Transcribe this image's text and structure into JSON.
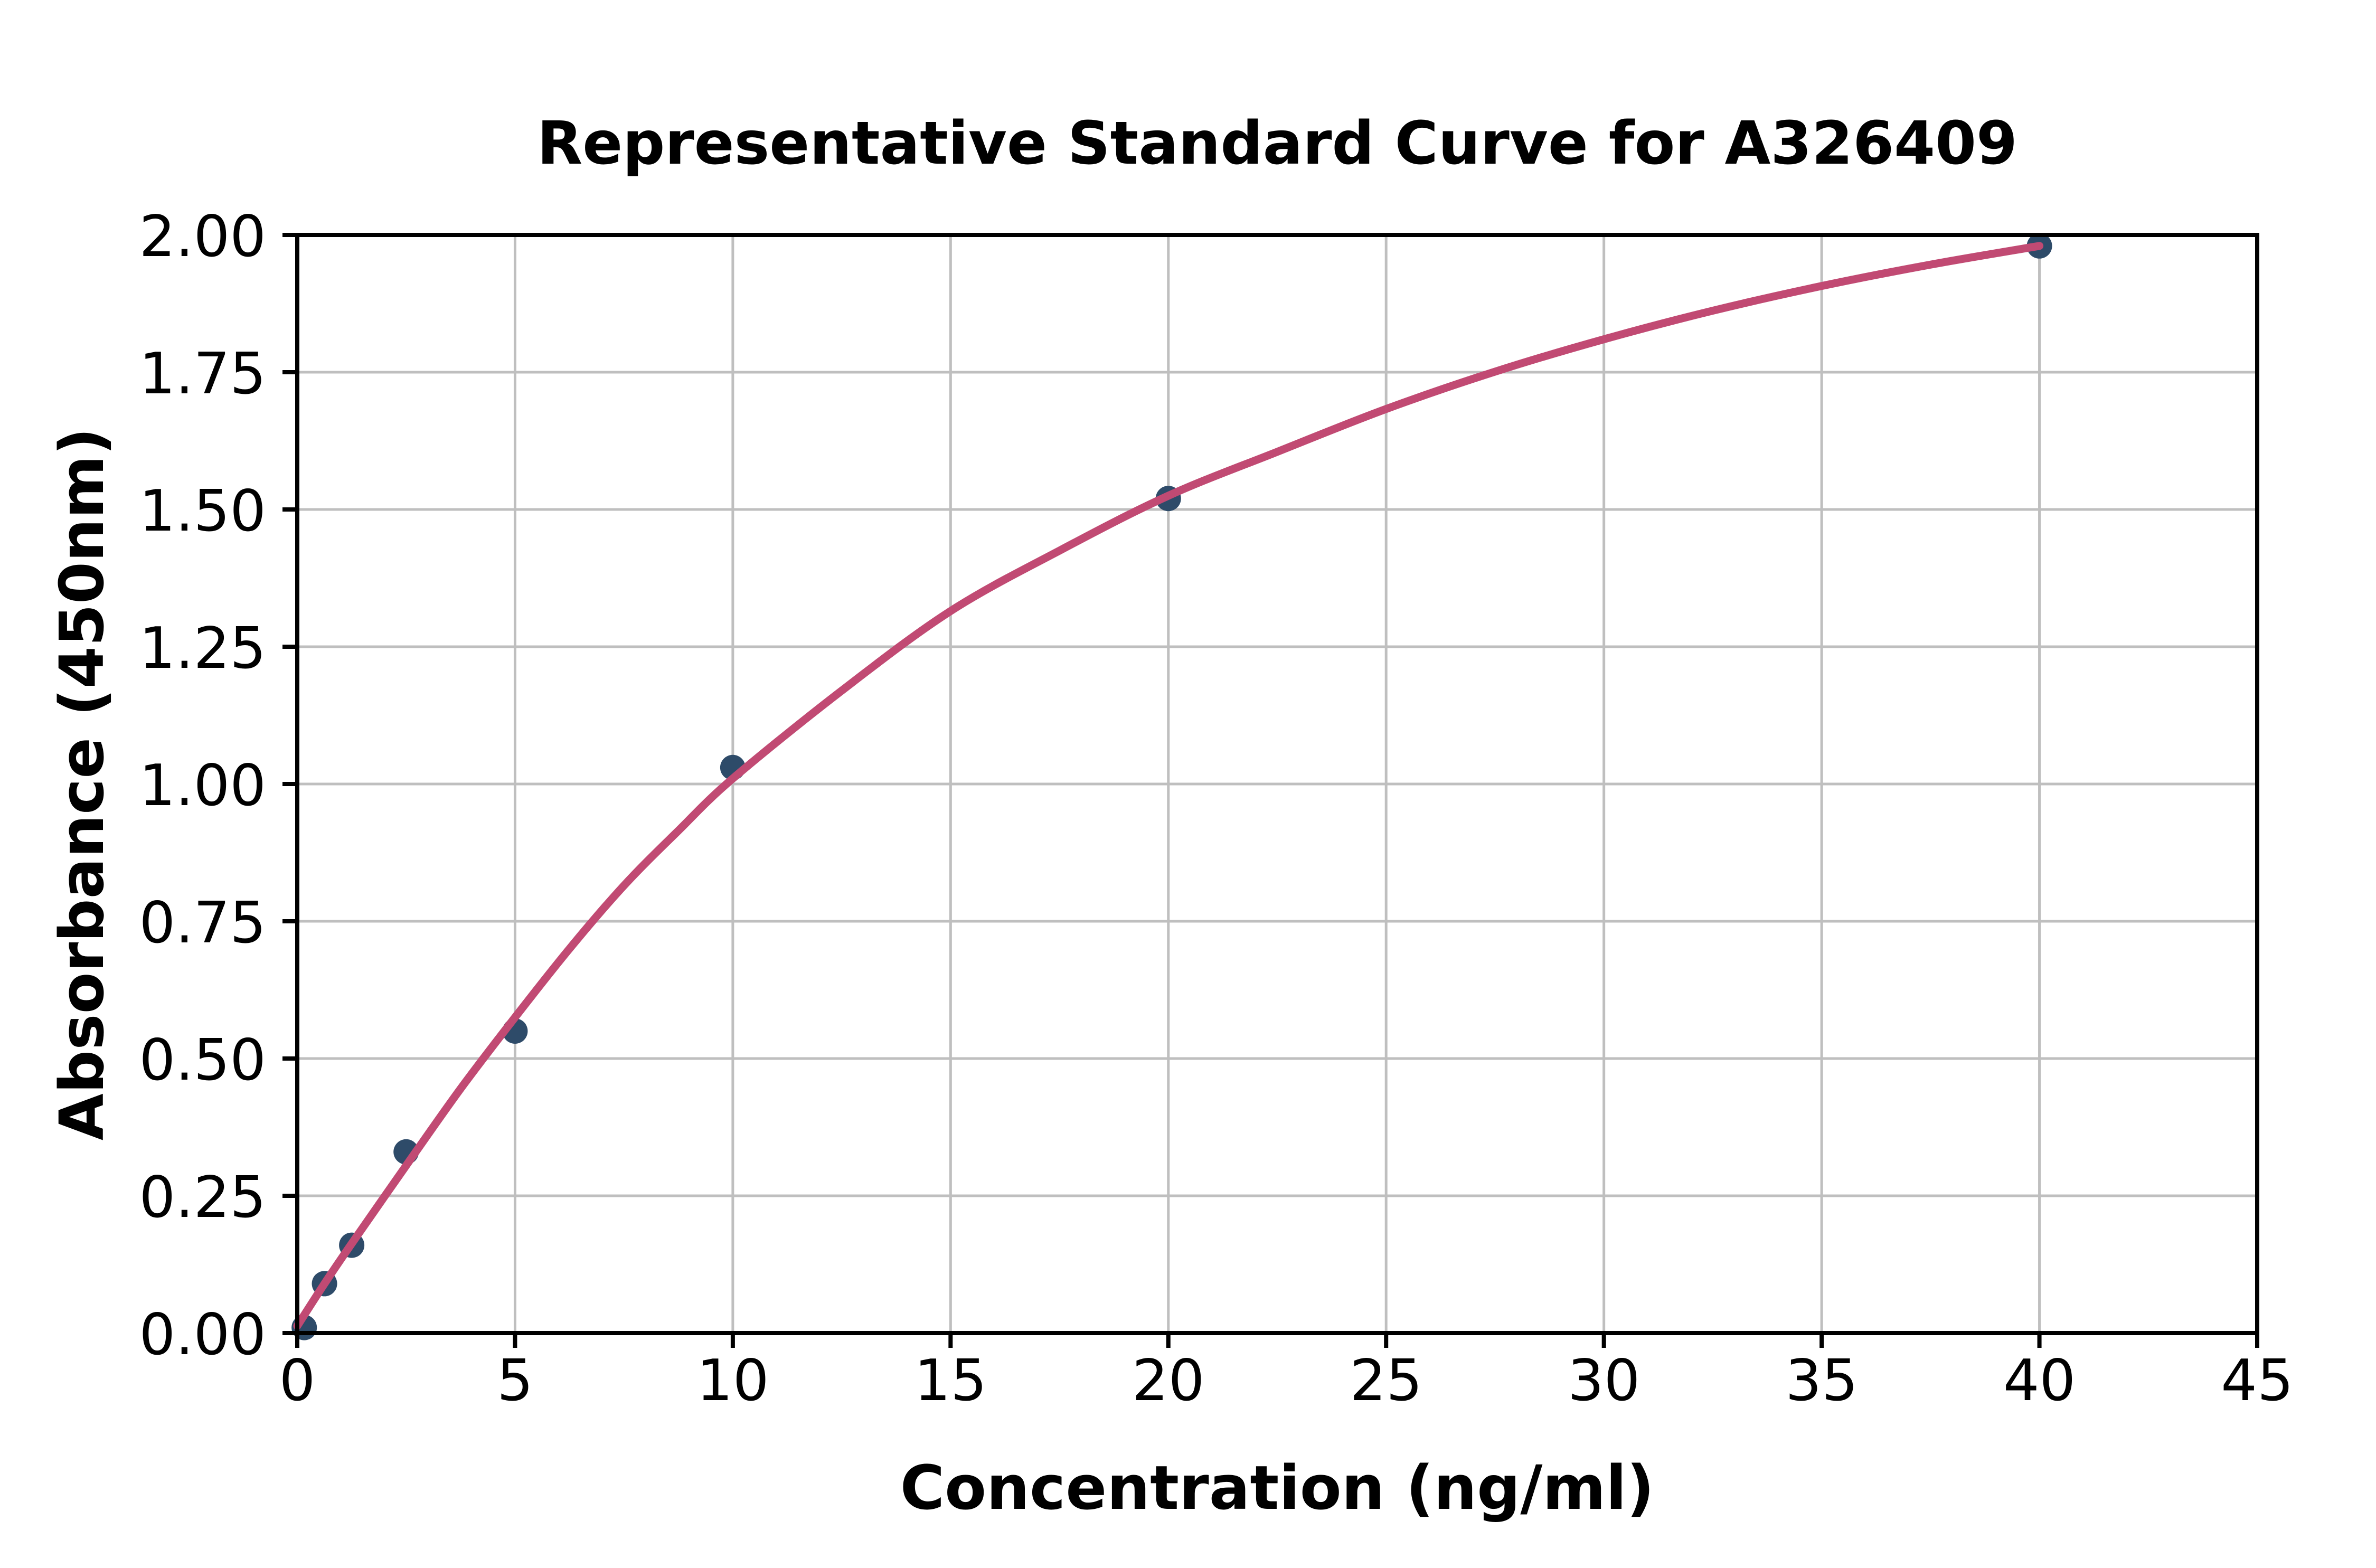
{
  "chart_data": {
    "type": "scatter",
    "title": "Representative Standard Curve for A326409",
    "xlabel": "Concentration (ng/ml)",
    "ylabel": "Absorbance (450nm)",
    "xlim": [
      0,
      45
    ],
    "ylim": [
      0.0,
      2.0
    ],
    "grid": true,
    "legend": "none",
    "x_ticks": [
      0,
      5,
      10,
      15,
      20,
      25,
      30,
      35,
      40,
      45
    ],
    "x_tick_labels": [
      "0",
      "5",
      "10",
      "15",
      "20",
      "25",
      "30",
      "35",
      "40",
      "45"
    ],
    "y_ticks": [
      0.0,
      0.25,
      0.5,
      0.75,
      1.0,
      1.25,
      1.5,
      1.75,
      2.0
    ],
    "y_tick_labels": [
      "0.00",
      "0.25",
      "0.50",
      "0.75",
      "1.00",
      "1.25",
      "1.50",
      "1.75",
      "2.00"
    ],
    "series": [
      {
        "name": "standard-points",
        "type": "scatter",
        "x": [
          0.16,
          0.625,
          1.25,
          2.5,
          5,
          10,
          20,
          40
        ],
        "y": [
          0.01,
          0.09,
          0.16,
          0.33,
          0.55,
          1.03,
          1.52,
          1.98
        ]
      },
      {
        "name": "fit-curve",
        "type": "line",
        "points": [
          [
            0,
            0.013
          ],
          [
            0.625,
            0.09
          ],
          [
            1.25,
            0.163
          ],
          [
            2.5,
            0.305
          ],
          [
            3.75,
            0.445
          ],
          [
            5,
            0.575
          ],
          [
            6.25,
            0.7
          ],
          [
            7.5,
            0.815
          ],
          [
            8.75,
            0.915
          ],
          [
            10,
            1.01
          ],
          [
            12.5,
            1.17
          ],
          [
            15,
            1.315
          ],
          [
            17.5,
            1.425
          ],
          [
            20,
            1.525
          ],
          [
            22.5,
            1.605
          ],
          [
            25,
            1.683
          ],
          [
            27.5,
            1.751
          ],
          [
            30,
            1.81
          ],
          [
            32.5,
            1.862
          ],
          [
            35,
            1.907
          ],
          [
            37.5,
            1.946
          ],
          [
            40,
            1.98
          ]
        ]
      }
    ],
    "colors": {
      "curve": "#C14A73",
      "points": "#2E4B69",
      "grid": "#BFBFBF",
      "spine": "#000000",
      "background": "#FFFFFF",
      "text": "#000000"
    }
  }
}
